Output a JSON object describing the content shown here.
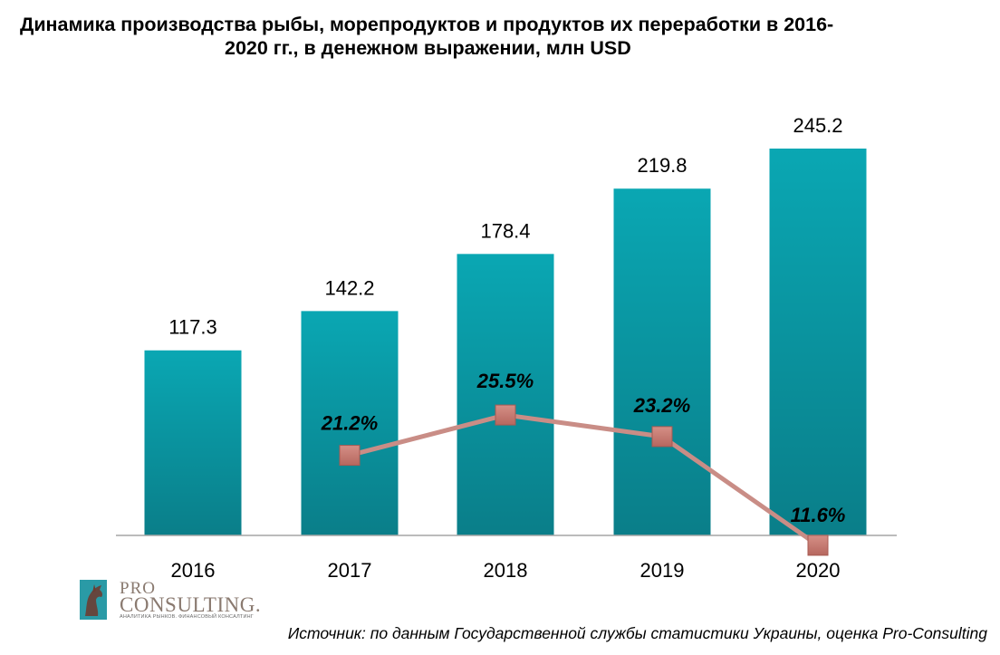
{
  "title_line1": "Динамика производства рыбы, морепродуктов и продуктов их переработки в 2016-",
  "title_line2": "2020 гг., в денежном выражении, млн USD",
  "source": "Источник: по данным Государственной службы статистики Украины, оценка Pro-Consulting",
  "logo": {
    "line1": "PRO",
    "line2": "CONSULTING.",
    "tagline": "АНАЛИТИКА РЫНКОВ. ФИНАНСОВЫЙ КОНСАЛТИНГ",
    "icon": "horse-head-logo-icon"
  },
  "chart_data": {
    "type": "bar",
    "categories": [
      "2016",
      "2017",
      "2018",
      "2019",
      "2020"
    ],
    "series": [
      {
        "values": [
          117.3,
          142.2,
          178.4,
          219.8,
          245.2
        ],
        "value_labels": [
          "117.3",
          "142.2",
          "178.4",
          "219.8",
          "245.2"
        ],
        "color": "#0a97a4",
        "type": "bar"
      },
      {
        "values": [
          null,
          21.2,
          25.5,
          23.2,
          11.6
        ],
        "value_labels": [
          "",
          "21.2%",
          "25.5%",
          "23.2%",
          "11.6%"
        ],
        "color": "#c98d86",
        "marker_color": "#c4786f",
        "type": "line",
        "unit": "%"
      }
    ],
    "bar_ylim": [
      0,
      245.2
    ],
    "line_ylim": [
      0,
      30
    ],
    "grid": false,
    "legend": "none",
    "title": "Динамика производства рыбы, морепродуктов и продуктов их переработки в 2016-2020 гг., в денежном выражении, млн USD"
  }
}
